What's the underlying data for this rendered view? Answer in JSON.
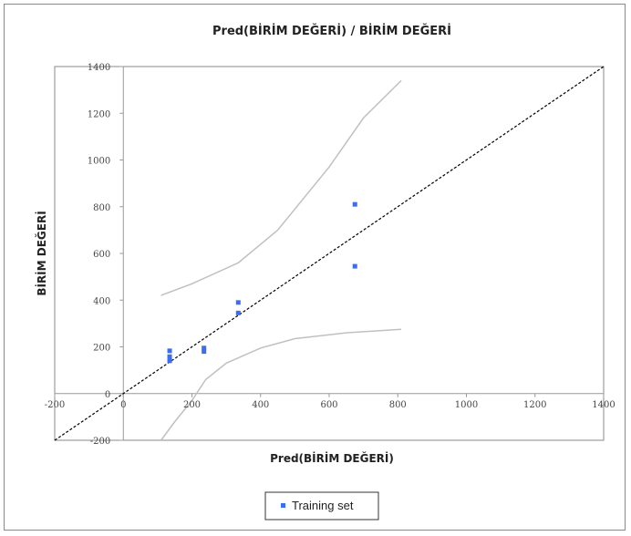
{
  "chart_data": {
    "type": "scatter",
    "title": "Pred(BİRİM DEĞERİ) / BİRİM DEĞERİ",
    "xlabel": "Pred(BİRİM DEĞERİ)",
    "ylabel": "BİRİM DEĞERİ",
    "xlim": [
      -200,
      1400
    ],
    "ylim": [
      -200,
      1400
    ],
    "x_ticks": [
      "-200",
      "0",
      "200",
      "400",
      "600",
      "800",
      "1000",
      "1200",
      "1400"
    ],
    "y_ticks": [
      "-200",
      "0",
      "200",
      "400",
      "600",
      "800",
      "1000",
      "1200",
      "1400"
    ],
    "x_tick_values": [
      -200,
      0,
      200,
      400,
      600,
      800,
      1000,
      1200,
      1400
    ],
    "y_tick_values": [
      -200,
      0,
      200,
      400,
      600,
      800,
      1000,
      1200,
      1400
    ],
    "grid": false,
    "legend_position": "bottom-center",
    "series": [
      {
        "name": "Training set",
        "color": "#3b6cf5",
        "points": [
          {
            "x": 135,
            "y": 183
          },
          {
            "x": 135,
            "y": 158
          },
          {
            "x": 135,
            "y": 140
          },
          {
            "x": 235,
            "y": 195
          },
          {
            "x": 235,
            "y": 180
          },
          {
            "x": 335,
            "y": 390
          },
          {
            "x": 335,
            "y": 345
          },
          {
            "x": 675,
            "y": 810
          },
          {
            "x": 675,
            "y": 545
          }
        ]
      }
    ],
    "reference_line": {
      "from": [
        -200,
        -200
      ],
      "to": [
        1400,
        1400
      ],
      "color": "#000000",
      "dash": true
    },
    "upper_band": [
      [
        110,
        420
      ],
      [
        200,
        470
      ],
      [
        335,
        560
      ],
      [
        450,
        700
      ],
      [
        600,
        970
      ],
      [
        700,
        1180
      ],
      [
        810,
        1340
      ]
    ],
    "lower_band": [
      [
        110,
        -200
      ],
      [
        150,
        -120
      ],
      [
        200,
        -30
      ],
      [
        240,
        60
      ],
      [
        300,
        130
      ],
      [
        400,
        195
      ],
      [
        500,
        235
      ],
      [
        650,
        260
      ],
      [
        810,
        275
      ]
    ],
    "band_color": "#c0c0c0"
  }
}
